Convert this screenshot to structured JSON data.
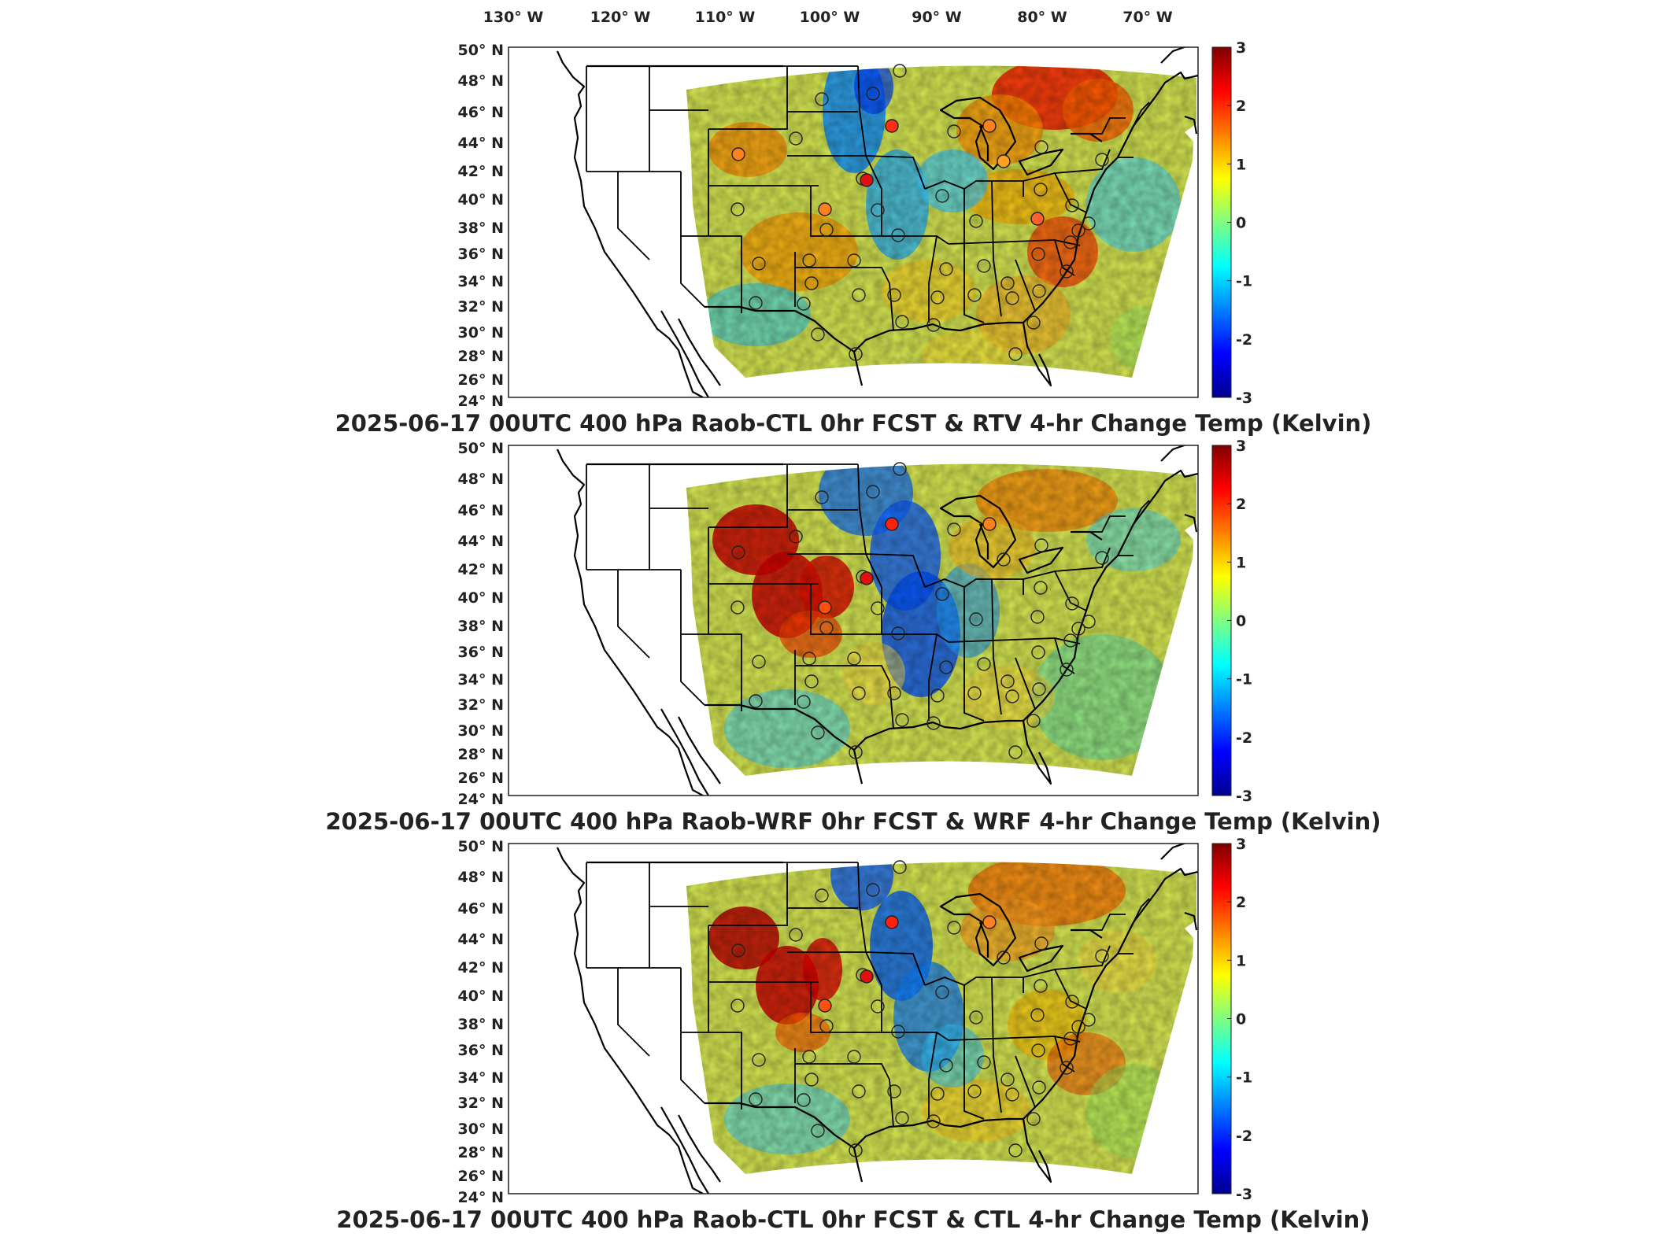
{
  "lon_labels": [
    "130° W",
    "120° W",
    "110° W",
    "100° W",
    "90° W",
    "80° W",
    "70° W"
  ],
  "lat_labels": [
    "50° N",
    "48° N",
    "46° N",
    "44° N",
    "42° N",
    "40° N",
    "38° N",
    "36° N",
    "34° N",
    "32° N",
    "30° N",
    "28° N",
    "26° N",
    "24° N"
  ],
  "colorbar": {
    "ticks": [
      "3",
      "2",
      "1",
      "0",
      "-1",
      "-2",
      "-3"
    ],
    "range": [
      -3,
      3
    ],
    "colormap": "jet",
    "colors": [
      "#00008f",
      "#0000ff",
      "#00ffff",
      "#ffff00",
      "#ff0000",
      "#800000"
    ]
  },
  "panels": [
    {
      "title": "2025-06-17 00UTC 400 hPa Raob-CTL 0hr FCST & RTV 4-hr Change Temp (Kelvin)"
    },
    {
      "title": "2025-06-17 00UTC 400 hPa Raob-WRF 0hr FCST & WRF 4-hr Change Temp (Kelvin)"
    },
    {
      "title": "2025-06-17 00UTC 400 hPa Raob-CTL 0hr FCST & CTL 4-hr Change Temp (Kelvin)"
    }
  ]
}
